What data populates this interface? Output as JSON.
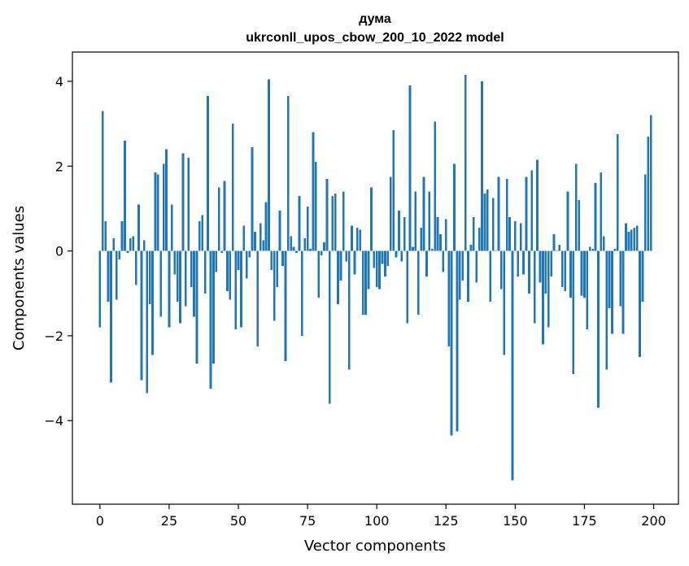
{
  "chart_data": {
    "type": "bar",
    "title": "дума",
    "subtitle": "ukrconll_upos_cbow_200_10_2022 model",
    "xlabel": "Vector components",
    "ylabel": "Components values",
    "xlim": [
      -9.95,
      208.95
    ],
    "ylim": [
      -5.97,
      4.69
    ],
    "xticks": [
      0,
      25,
      50,
      75,
      100,
      125,
      150,
      175,
      200
    ],
    "yticks": [
      -4,
      -2,
      0,
      2,
      4
    ],
    "grid": false,
    "legend": "none",
    "bar_color": "#1f77b4",
    "x": [
      0,
      1,
      2,
      3,
      4,
      5,
      6,
      7,
      8,
      9,
      10,
      11,
      12,
      13,
      14,
      15,
      16,
      17,
      18,
      19,
      20,
      21,
      22,
      23,
      24,
      25,
      26,
      27,
      28,
      29,
      30,
      31,
      32,
      33,
      34,
      35,
      36,
      37,
      38,
      39,
      40,
      41,
      42,
      43,
      44,
      45,
      46,
      47,
      48,
      49,
      50,
      51,
      52,
      53,
      54,
      55,
      56,
      57,
      58,
      59,
      60,
      61,
      62,
      63,
      64,
      65,
      66,
      67,
      68,
      69,
      70,
      71,
      72,
      73,
      74,
      75,
      76,
      77,
      78,
      79,
      80,
      81,
      82,
      83,
      84,
      85,
      86,
      87,
      88,
      89,
      90,
      91,
      92,
      93,
      94,
      95,
      96,
      97,
      98,
      99,
      100,
      101,
      102,
      103,
      104,
      105,
      106,
      107,
      108,
      109,
      110,
      111,
      112,
      113,
      114,
      115,
      116,
      117,
      118,
      119,
      120,
      121,
      122,
      123,
      124,
      125,
      126,
      127,
      128,
      129,
      130,
      131,
      132,
      133,
      134,
      135,
      136,
      137,
      138,
      139,
      140,
      141,
      142,
      143,
      144,
      145,
      146,
      147,
      148,
      149,
      150,
      151,
      152,
      153,
      154,
      155,
      156,
      157,
      158,
      159,
      160,
      161,
      162,
      163,
      164,
      165,
      166,
      167,
      168,
      169,
      170,
      171,
      172,
      173,
      174,
      175,
      176,
      177,
      178,
      179,
      180,
      181,
      182,
      183,
      184,
      185,
      186,
      187,
      188,
      189,
      190,
      191,
      192,
      193,
      194,
      195,
      196,
      197,
      198,
      199
    ],
    "values": [
      -1.8,
      3.3,
      0.7,
      -1.2,
      -3.1,
      0.3,
      -1.15,
      -0.2,
      0.7,
      2.6,
      -0.05,
      0.3,
      0.35,
      -0.8,
      1.1,
      -3.05,
      0.25,
      -3.35,
      -1.25,
      -2.45,
      1.85,
      1.8,
      -1.55,
      2.05,
      2.4,
      -1.8,
      1.1,
      -0.55,
      -1.2,
      -1.7,
      2.3,
      -1.3,
      2.2,
      -0.85,
      -1.55,
      -2.65,
      0.7,
      0.85,
      -1.0,
      3.65,
      -3.25,
      -2.65,
      -0.5,
      1.5,
      -0.05,
      1.65,
      -0.95,
      -1.15,
      3.0,
      -1.85,
      -0.45,
      -1.8,
      0.6,
      -0.65,
      -0.15,
      2.45,
      0.45,
      -2.25,
      0.65,
      0.25,
      1.15,
      4.05,
      -0.45,
      -1.65,
      -0.85,
      0.95,
      -0.35,
      -2.6,
      3.65,
      0.35,
      0.1,
      -0.05,
      1.3,
      -2.0,
      0.3,
      1.05,
      0.05,
      2.8,
      2.1,
      -1.1,
      -0.1,
      0.2,
      1.7,
      -3.6,
      1.3,
      1.35,
      -1.25,
      -0.7,
      1.4,
      -0.25,
      -2.8,
      0.6,
      -0.55,
      0.55,
      0.5,
      -1.5,
      -1.5,
      -0.9,
      1.5,
      -0.4,
      -0.85,
      -0.9,
      -0.3,
      -0.6,
      -0.35,
      1.75,
      2.85,
      -0.15,
      0.95,
      -0.25,
      0.8,
      -1.7,
      3.9,
      0.1,
      1.4,
      -1.5,
      0.55,
      1.75,
      -0.6,
      1.4,
      0.05,
      3.05,
      0.8,
      0.4,
      -0.5,
      0.75,
      -2.25,
      -4.35,
      2.05,
      -4.25,
      -1.15,
      -0.7,
      4.15,
      -1.2,
      0.15,
      0.8,
      -0.75,
      0.55,
      4.0,
      1.35,
      1.45,
      -1.2,
      1.25,
      0.0,
      1.75,
      -0.9,
      -2.45,
      1.7,
      0.8,
      -5.4,
      0.7,
      -0.6,
      0.65,
      -0.55,
      1.75,
      -1.0,
      1.9,
      -1.7,
      2.15,
      -0.75,
      -2.2,
      -1.0,
      -1.8,
      -0.6,
      0.4,
      0.0,
      0.15,
      -0.85,
      -0.95,
      1.4,
      -1.1,
      -2.9,
      2.05,
      1.2,
      -1.05,
      -1.1,
      -1.85,
      0.1,
      0.05,
      1.6,
      -3.7,
      1.85,
      0.35,
      -2.8,
      -1.35,
      -1.95,
      0.05,
      2.75,
      -1.3,
      -1.95,
      0.65,
      0.45,
      0.5,
      0.55,
      0.6,
      -2.5,
      -1.2,
      1.8,
      2.7,
      3.2
    ]
  }
}
